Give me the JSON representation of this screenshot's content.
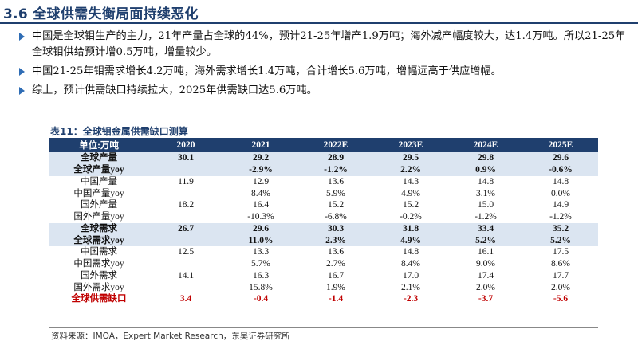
{
  "title": "3.6 全球供需失衡局面持续恶化",
  "bullets": [
    "中国是全球钼生产的主力，21年产量占全球的44%，预计21-25年增产1.9万吨；海外减产幅度较大，达1.4万吨。所以21-25年全球钼供给预计增0.5万吨，增量较少。",
    "中国21-25年钼需求增长4.2万吨，海外需求增长1.4万吨，合计增长5.6万吨，增幅远高于供应增幅。",
    "综上，预计供需缺口持续拉大，2025年供需缺口达5.6万吨。"
  ],
  "table": {
    "caption": "表11：全球钼金属供需缺口测算",
    "headers": [
      "单位:万吨",
      "2020",
      "2021",
      "2022E",
      "2023E",
      "2024E",
      "2025E"
    ],
    "rows": [
      {
        "label": "全球产量",
        "values": [
          "30.1",
          "29.2",
          "28.9",
          "29.5",
          "29.8",
          "29.6"
        ],
        "style": "shade-bold"
      },
      {
        "label": "全球产量yoy",
        "values": [
          "",
          "-2.9%",
          "-1.2%",
          "2.2%",
          "0.9%",
          "-0.6%"
        ],
        "style": "shade-bold"
      },
      {
        "label": "中国产量",
        "values": [
          "11.9",
          "12.9",
          "13.6",
          "14.3",
          "14.8",
          "14.8"
        ],
        "style": "plain"
      },
      {
        "label": "中国产量yoy",
        "values": [
          "",
          "8.4%",
          "5.9%",
          "4.9%",
          "3.1%",
          "0.0%"
        ],
        "style": "plain"
      },
      {
        "label": "国外产量",
        "values": [
          "18.2",
          "16.4",
          "15.2",
          "15.2",
          "15.0",
          "14.9"
        ],
        "style": "plain"
      },
      {
        "label": "国外产量yoy",
        "values": [
          "",
          "-10.3%",
          "-6.8%",
          "-0.2%",
          "-1.2%",
          "-1.2%"
        ],
        "style": "plain"
      },
      {
        "label": "全球需求",
        "values": [
          "26.7",
          "29.6",
          "30.3",
          "31.8",
          "33.4",
          "35.2"
        ],
        "style": "shade-bold"
      },
      {
        "label": "全球需求yoy",
        "values": [
          "",
          "11.0%",
          "2.3%",
          "4.9%",
          "5.2%",
          "5.2%"
        ],
        "style": "shade-bold"
      },
      {
        "label": "中国需求",
        "values": [
          "12.5",
          "13.3",
          "13.6",
          "14.8",
          "16.1",
          "17.5"
        ],
        "style": "plain"
      },
      {
        "label": "中国需求yoy",
        "values": [
          "",
          "5.7%",
          "2.7%",
          "8.4%",
          "9.0%",
          "8.6%"
        ],
        "style": "plain"
      },
      {
        "label": "国外需求",
        "values": [
          "14.1",
          "16.3",
          "16.7",
          "17.0",
          "17.4",
          "17.7"
        ],
        "style": "plain"
      },
      {
        "label": "国外需求yoy",
        "values": [
          "",
          "15.8%",
          "1.9%",
          "2.1%",
          "2.0%",
          "2.0%"
        ],
        "style": "plain"
      },
      {
        "label": "全球供需缺口",
        "values": [
          "3.4",
          "-0.4",
          "-1.4",
          "-2.3",
          "-3.7",
          "-5.6"
        ],
        "style": "total"
      }
    ]
  },
  "source": "资料来源：IMOA，Expert Market Research，东吴证券研究所",
  "colors": {
    "header_bg": "#1f3f6e",
    "shade": "#dbe5f1",
    "total_text": "#c00000",
    "bullet": "#2f6db5"
  }
}
